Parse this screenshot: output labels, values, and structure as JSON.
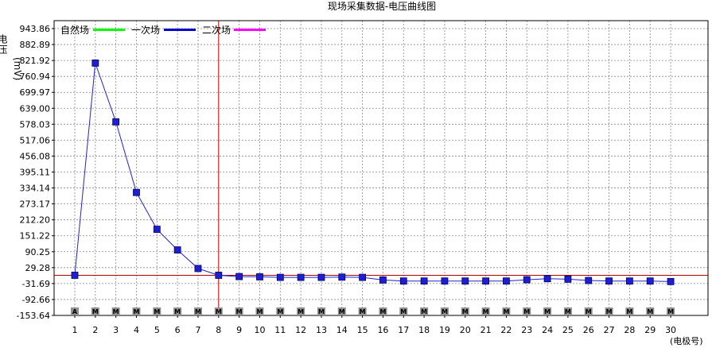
{
  "chart_data": {
    "type": "line",
    "title": "现场采集数据-电压曲线图",
    "ylabel_main": "电压",
    "ylabel_unit": "(mV)",
    "xlabel": "(电极号)",
    "x": [
      1,
      2,
      3,
      4,
      5,
      6,
      7,
      8,
      9,
      10,
      11,
      12,
      13,
      14,
      15,
      16,
      17,
      18,
      19,
      20,
      21,
      22,
      23,
      24,
      25,
      26,
      27,
      28,
      29,
      30
    ],
    "y_ticks": [
      "943.86",
      "882.89",
      "821.92",
      "760.94",
      "699.97",
      "639.00",
      "578.03",
      "517.06",
      "456.08",
      "395.11",
      "334.14",
      "273.17",
      "212.20",
      "151.22",
      "90.25",
      "29.28",
      "-31.69",
      "-92.66",
      "-153.64"
    ],
    "ylim": [
      -153.64,
      943.86
    ],
    "grid": true,
    "legend": [
      {
        "name": "自然场",
        "color": "#00ff00"
      },
      {
        "name": "一次场",
        "color": "#0000cc"
      },
      {
        "name": "二次场",
        "color": "#ff00ff"
      }
    ],
    "series": [
      {
        "name": "一次场",
        "color": "#2222cc",
        "values": [
          0,
          812,
          587,
          317,
          176,
          97,
          26,
          0,
          -5,
          -6,
          -8,
          -8,
          -8,
          -7,
          -8,
          -18,
          -22,
          -22,
          -22,
          -22,
          -22,
          -22,
          -17,
          -13,
          -15,
          -20,
          -22,
          -22,
          -22,
          -24
        ]
      }
    ],
    "cursor_x": 8,
    "reference_y": 0,
    "electrode_markers": [
      "A",
      "M",
      "M",
      "M",
      "M",
      "M",
      "M",
      "M",
      "M",
      "M",
      "M",
      "M",
      "M",
      "M",
      "M",
      "M",
      "M",
      "M",
      "M",
      "M",
      "M",
      "M",
      "M",
      "M",
      "M",
      "M",
      "M",
      "M",
      "M",
      "M"
    ],
    "marker_colors": {
      "A": "#cc0000",
      "M": "#000000"
    }
  }
}
